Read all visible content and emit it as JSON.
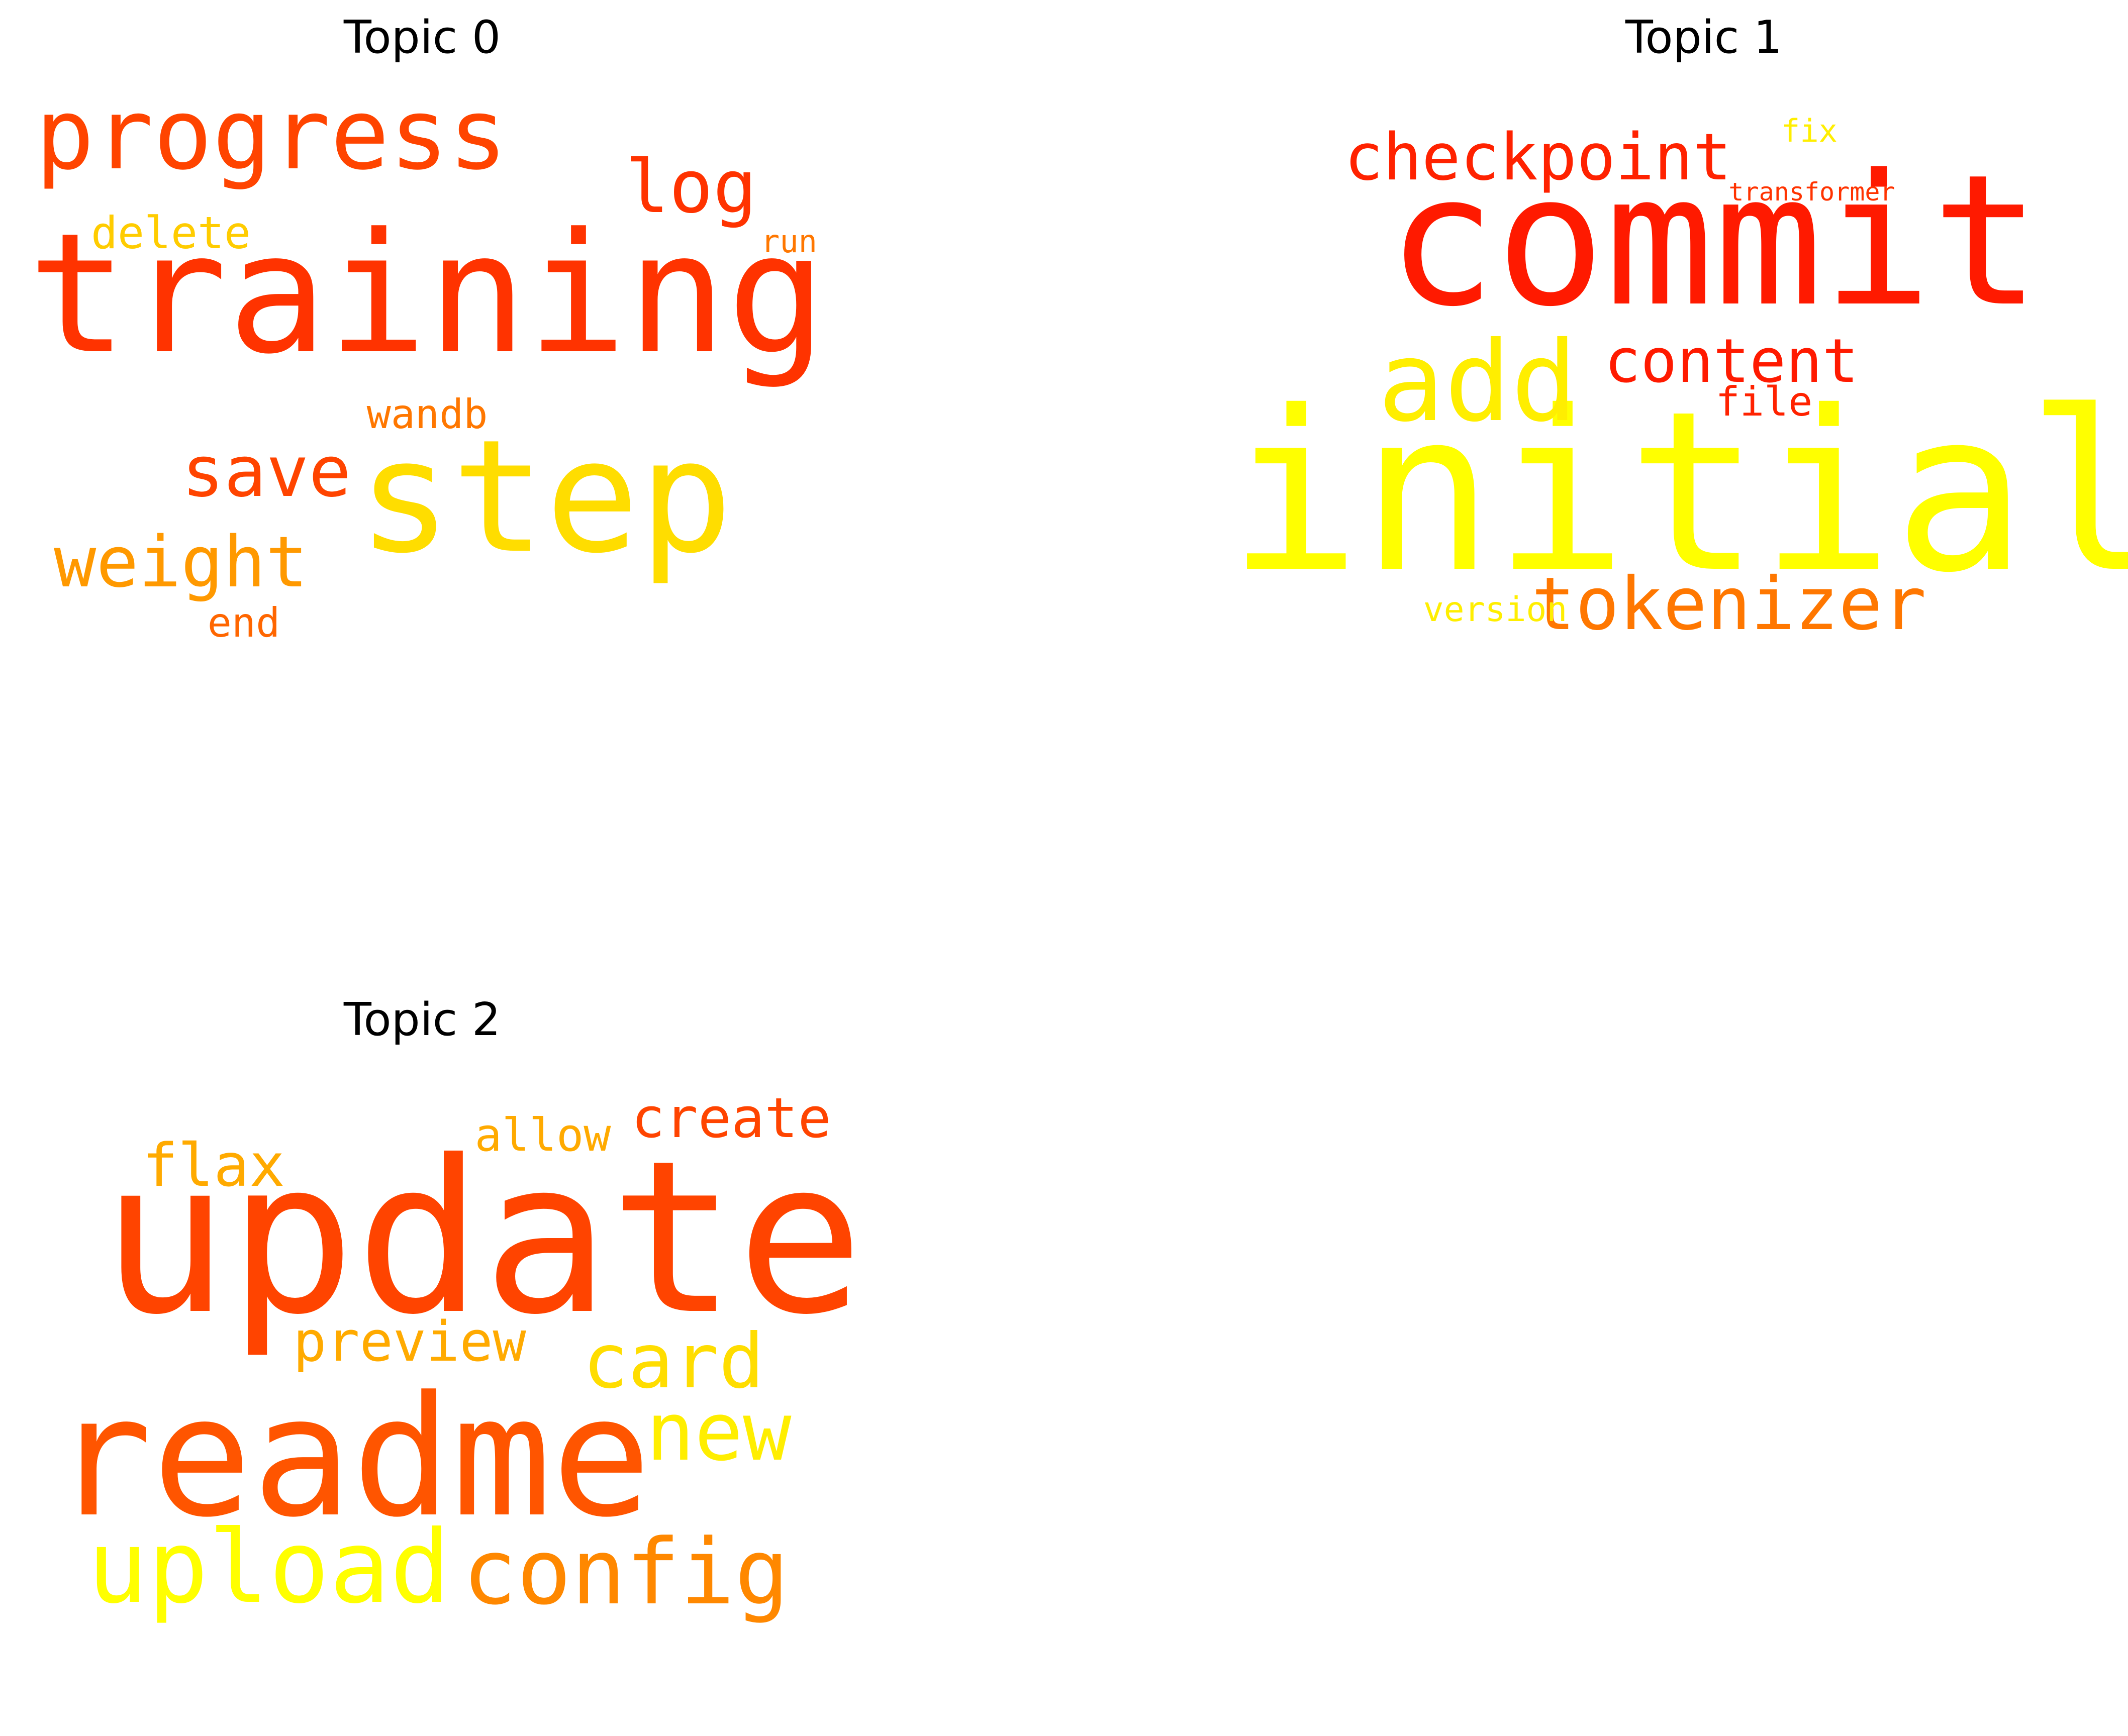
{
  "panels": [
    {
      "title": "Topic 0",
      "words": [
        {
          "text": "training",
          "color": "#ff3300"
        },
        {
          "text": "step",
          "color": "#ffdd00"
        },
        {
          "text": "progress",
          "color": "#ff4400"
        },
        {
          "text": "log",
          "color": "#ff3300"
        },
        {
          "text": "save",
          "color": "#ff4400"
        },
        {
          "text": "weight",
          "color": "#ff9900"
        },
        {
          "text": "delete",
          "color": "#ffcc00"
        },
        {
          "text": "wandb",
          "color": "#ff7700"
        },
        {
          "text": "run",
          "color": "#ff7700"
        },
        {
          "text": "end",
          "color": "#ff6600"
        }
      ]
    },
    {
      "title": "Topic 1",
      "words": [
        {
          "text": "commit",
          "color": "#ff1a00"
        },
        {
          "text": "initial",
          "color": "#ffff00"
        },
        {
          "text": "add",
          "color": "#ffee00"
        },
        {
          "text": "checkpoint",
          "color": "#ff2200"
        },
        {
          "text": "content",
          "color": "#ff1a00"
        },
        {
          "text": "tokenizer",
          "color": "#ff7700"
        },
        {
          "text": "file",
          "color": "#ff2200"
        },
        {
          "text": "fix",
          "color": "#ffee00"
        },
        {
          "text": "transformer",
          "color": "#ff3300"
        },
        {
          "text": "version",
          "color": "#ffee00"
        }
      ]
    },
    {
      "title": "Topic 2",
      "words": [
        {
          "text": "update",
          "color": "#ff4400"
        },
        {
          "text": "readme",
          "color": "#ff5500"
        },
        {
          "text": "upload",
          "color": "#ffff00"
        },
        {
          "text": "config",
          "color": "#ff8800"
        },
        {
          "text": "card",
          "color": "#ffdd00"
        },
        {
          "text": "new",
          "color": "#ffee00"
        },
        {
          "text": "preview",
          "color": "#ffaa00"
        },
        {
          "text": "flax",
          "color": "#ffaa00"
        },
        {
          "text": "allow",
          "color": "#ffaa00"
        },
        {
          "text": "create",
          "color": "#ff4400"
        }
      ]
    }
  ]
}
